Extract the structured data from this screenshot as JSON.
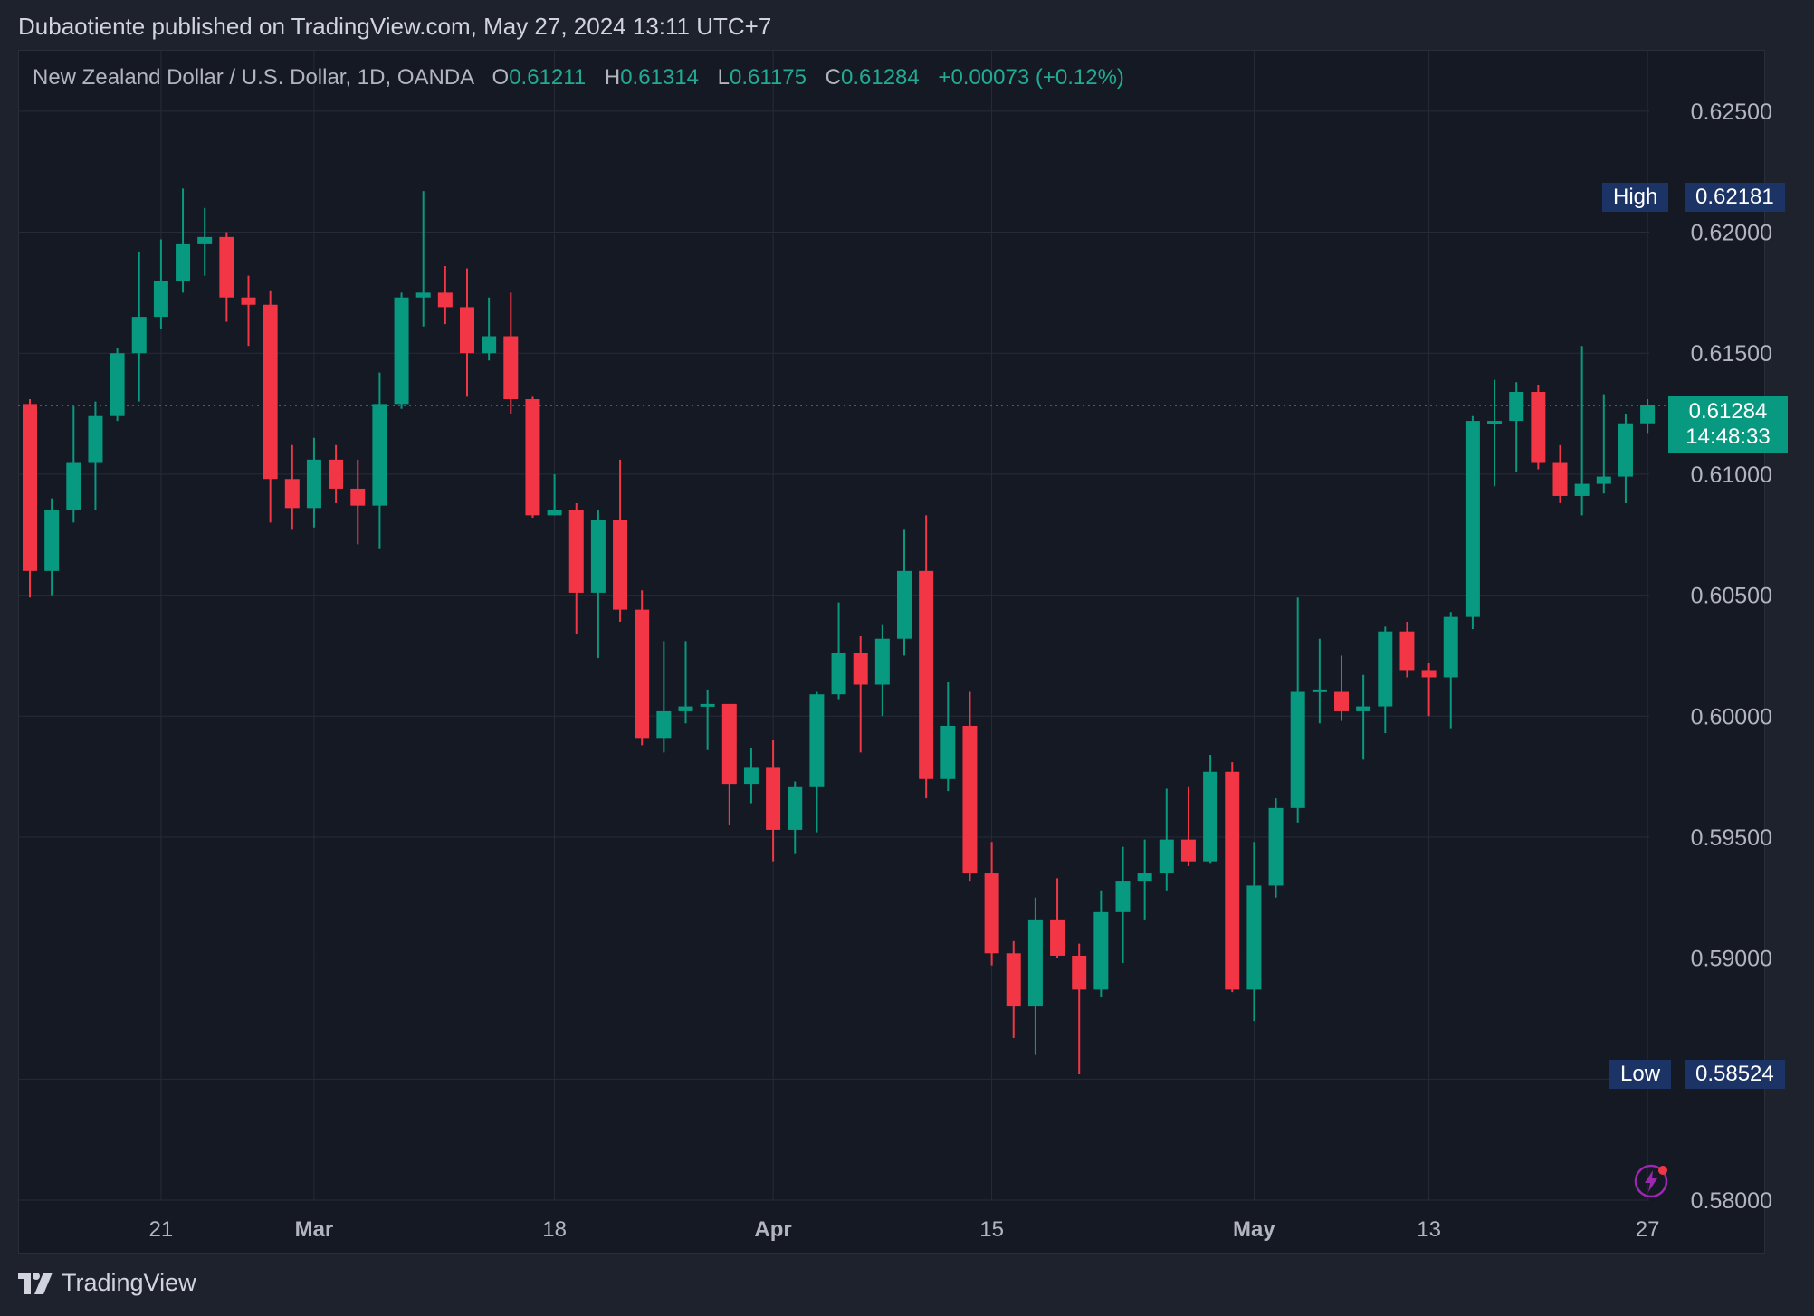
{
  "header": {
    "text": "Dubaotiente published on TradingView.com, May 27, 2024 13:11 UTC+7"
  },
  "legend": {
    "symbol": "New Zealand Dollar / U.S. Dollar, 1D, OANDA",
    "o_label": "O",
    "o_value": "0.61211",
    "h_label": "H",
    "h_value": "0.61314",
    "l_label": "L",
    "l_value": "0.61175",
    "c_label": "C",
    "c_value": "0.61284",
    "change": "+0.00073 (+0.12%)"
  },
  "high_tag": {
    "label": "High",
    "value": "0.62181"
  },
  "low_tag": {
    "label": "Low",
    "value": "0.58524"
  },
  "last_price_tag": {
    "value": "0.61284",
    "countdown": "14:48:33"
  },
  "footer": {
    "brand": "TradingView"
  },
  "colors": {
    "up": "#089981",
    "down": "#f23645",
    "background": "#151924",
    "grid": "#262b38",
    "axis_text": "#b2b5be",
    "tag_bg": "#1c3366"
  },
  "chart_data": {
    "type": "candlestick",
    "title": "New Zealand Dollar / U.S. Dollar, 1D, OANDA",
    "ylim": [
      0.58,
      0.6275
    ],
    "y_ticks": [
      "0.62500",
      "0.62000",
      "0.61500",
      "0.61000",
      "0.60500",
      "0.60000",
      "0.59500",
      "0.59000",
      "0.58500",
      "0.58000"
    ],
    "y_tick_values": [
      0.625,
      0.62,
      0.615,
      0.61,
      0.605,
      0.6,
      0.595,
      0.59,
      0.585,
      0.58
    ],
    "x_ticks": [
      {
        "label": "21",
        "index": 6
      },
      {
        "label": "Mar",
        "index": 13
      },
      {
        "label": "18",
        "index": 24
      },
      {
        "label": "Apr",
        "index": 34
      },
      {
        "label": "15",
        "index": 44
      },
      {
        "label": "May",
        "index": 56
      },
      {
        "label": "13",
        "index": 64
      },
      {
        "label": "27",
        "index": 74
      }
    ],
    "grid": true,
    "last_price": 0.61284,
    "candles": [
      {
        "o": 0.6129,
        "h": 0.6131,
        "l": 0.6049,
        "c": 0.606
      },
      {
        "o": 0.606,
        "h": 0.609,
        "l": 0.605,
        "c": 0.6085
      },
      {
        "o": 0.6085,
        "h": 0.6128,
        "l": 0.608,
        "c": 0.6105
      },
      {
        "o": 0.6105,
        "h": 0.613,
        "l": 0.6085,
        "c": 0.6124
      },
      {
        "o": 0.6124,
        "h": 0.6152,
        "l": 0.6122,
        "c": 0.615
      },
      {
        "o": 0.615,
        "h": 0.6192,
        "l": 0.613,
        "c": 0.6165
      },
      {
        "o": 0.6165,
        "h": 0.6197,
        "l": 0.616,
        "c": 0.618
      },
      {
        "o": 0.618,
        "h": 0.6218,
        "l": 0.6175,
        "c": 0.6195
      },
      {
        "o": 0.6195,
        "h": 0.621,
        "l": 0.6182,
        "c": 0.6198
      },
      {
        "o": 0.6198,
        "h": 0.62,
        "l": 0.6163,
        "c": 0.6173
      },
      {
        "o": 0.6173,
        "h": 0.6182,
        "l": 0.6153,
        "c": 0.617
      },
      {
        "o": 0.617,
        "h": 0.6176,
        "l": 0.608,
        "c": 0.6098
      },
      {
        "o": 0.6098,
        "h": 0.6112,
        "l": 0.6077,
        "c": 0.6086
      },
      {
        "o": 0.6086,
        "h": 0.6115,
        "l": 0.6078,
        "c": 0.6106
      },
      {
        "o": 0.6106,
        "h": 0.6112,
        "l": 0.6088,
        "c": 0.6094
      },
      {
        "o": 0.6094,
        "h": 0.6106,
        "l": 0.6071,
        "c": 0.6087
      },
      {
        "o": 0.6087,
        "h": 0.6142,
        "l": 0.6069,
        "c": 0.6129
      },
      {
        "o": 0.6129,
        "h": 0.6175,
        "l": 0.6127,
        "c": 0.6173
      },
      {
        "o": 0.6173,
        "h": 0.6217,
        "l": 0.6161,
        "c": 0.6175
      },
      {
        "o": 0.6175,
        "h": 0.6186,
        "l": 0.6162,
        "c": 0.6169
      },
      {
        "o": 0.6169,
        "h": 0.6185,
        "l": 0.6132,
        "c": 0.615
      },
      {
        "o": 0.615,
        "h": 0.6173,
        "l": 0.6147,
        "c": 0.6157
      },
      {
        "o": 0.6157,
        "h": 0.6175,
        "l": 0.6125,
        "c": 0.6131
      },
      {
        "o": 0.6131,
        "h": 0.6132,
        "l": 0.6082,
        "c": 0.6083
      },
      {
        "o": 0.6083,
        "h": 0.61,
        "l": 0.6083,
        "c": 0.6085
      },
      {
        "o": 0.6085,
        "h": 0.6088,
        "l": 0.6034,
        "c": 0.6051
      },
      {
        "o": 0.6051,
        "h": 0.6085,
        "l": 0.6024,
        "c": 0.6081
      },
      {
        "o": 0.6081,
        "h": 0.6106,
        "l": 0.6039,
        "c": 0.6044
      },
      {
        "o": 0.6044,
        "h": 0.6052,
        "l": 0.5988,
        "c": 0.5991
      },
      {
        "o": 0.5991,
        "h": 0.6031,
        "l": 0.5985,
        "c": 0.6002
      },
      {
        "o": 0.6002,
        "h": 0.6031,
        "l": 0.5997,
        "c": 0.6004
      },
      {
        "o": 0.6004,
        "h": 0.6011,
        "l": 0.5986,
        "c": 0.6005
      },
      {
        "o": 0.6005,
        "h": 0.6005,
        "l": 0.5955,
        "c": 0.5972
      },
      {
        "o": 0.5972,
        "h": 0.5987,
        "l": 0.5964,
        "c": 0.5979
      },
      {
        "o": 0.5979,
        "h": 0.599,
        "l": 0.594,
        "c": 0.5953
      },
      {
        "o": 0.5953,
        "h": 0.5973,
        "l": 0.5943,
        "c": 0.5971
      },
      {
        "o": 0.5971,
        "h": 0.601,
        "l": 0.5952,
        "c": 0.6009
      },
      {
        "o": 0.6009,
        "h": 0.6047,
        "l": 0.6007,
        "c": 0.6026
      },
      {
        "o": 0.6026,
        "h": 0.6033,
        "l": 0.5985,
        "c": 0.6013
      },
      {
        "o": 0.6013,
        "h": 0.6038,
        "l": 0.6,
        "c": 0.6032
      },
      {
        "o": 0.6032,
        "h": 0.6077,
        "l": 0.6025,
        "c": 0.606
      },
      {
        "o": 0.606,
        "h": 0.6083,
        "l": 0.5966,
        "c": 0.5974
      },
      {
        "o": 0.5974,
        "h": 0.6014,
        "l": 0.5969,
        "c": 0.5996
      },
      {
        "o": 0.5996,
        "h": 0.601,
        "l": 0.5932,
        "c": 0.5935
      },
      {
        "o": 0.5935,
        "h": 0.5948,
        "l": 0.5897,
        "c": 0.5902
      },
      {
        "o": 0.5902,
        "h": 0.5907,
        "l": 0.5867,
        "c": 0.588
      },
      {
        "o": 0.588,
        "h": 0.5925,
        "l": 0.586,
        "c": 0.5916
      },
      {
        "o": 0.5916,
        "h": 0.5933,
        "l": 0.59,
        "c": 0.5901
      },
      {
        "o": 0.5901,
        "h": 0.5906,
        "l": 0.5852,
        "c": 0.5887
      },
      {
        "o": 0.5887,
        "h": 0.5928,
        "l": 0.5884,
        "c": 0.5919
      },
      {
        "o": 0.5919,
        "h": 0.5946,
        "l": 0.5898,
        "c": 0.5932
      },
      {
        "o": 0.5932,
        "h": 0.5949,
        "l": 0.5916,
        "c": 0.5935
      },
      {
        "o": 0.5935,
        "h": 0.597,
        "l": 0.5928,
        "c": 0.5949
      },
      {
        "o": 0.5949,
        "h": 0.5971,
        "l": 0.5938,
        "c": 0.594
      },
      {
        "o": 0.594,
        "h": 0.5984,
        "l": 0.5939,
        "c": 0.5977
      },
      {
        "o": 0.5977,
        "h": 0.5981,
        "l": 0.5886,
        "c": 0.5887
      },
      {
        "o": 0.5887,
        "h": 0.5948,
        "l": 0.5874,
        "c": 0.593
      },
      {
        "o": 0.593,
        "h": 0.5966,
        "l": 0.5925,
        "c": 0.5962
      },
      {
        "o": 0.5962,
        "h": 0.6049,
        "l": 0.5956,
        "c": 0.601
      },
      {
        "o": 0.601,
        "h": 0.6032,
        "l": 0.5997,
        "c": 0.6011
      },
      {
        "o": 0.601,
        "h": 0.6025,
        "l": 0.5998,
        "c": 0.6002
      },
      {
        "o": 0.6002,
        "h": 0.6017,
        "l": 0.5982,
        "c": 0.6004
      },
      {
        "o": 0.6004,
        "h": 0.6037,
        "l": 0.5993,
        "c": 0.6035
      },
      {
        "o": 0.6035,
        "h": 0.6039,
        "l": 0.6016,
        "c": 0.6019
      },
      {
        "o": 0.6019,
        "h": 0.6022,
        "l": 0.6,
        "c": 0.6016
      },
      {
        "o": 0.6016,
        "h": 0.6043,
        "l": 0.5995,
        "c": 0.6041
      },
      {
        "o": 0.6041,
        "h": 0.6124,
        "l": 0.6036,
        "c": 0.6122
      },
      {
        "o": 0.6122,
        "h": 0.6139,
        "l": 0.6095,
        "c": 0.6122
      },
      {
        "o": 0.6122,
        "h": 0.6138,
        "l": 0.6101,
        "c": 0.6134
      },
      {
        "o": 0.6134,
        "h": 0.6137,
        "l": 0.6102,
        "c": 0.6105
      },
      {
        "o": 0.6105,
        "h": 0.6112,
        "l": 0.6088,
        "c": 0.6091
      },
      {
        "o": 0.6091,
        "h": 0.6153,
        "l": 0.6083,
        "c": 0.6096
      },
      {
        "o": 0.6096,
        "h": 0.6133,
        "l": 0.6092,
        "c": 0.6099
      },
      {
        "o": 0.6099,
        "h": 0.6125,
        "l": 0.6088,
        "c": 0.6121
      },
      {
        "o": 0.6121,
        "h": 0.6131,
        "l": 0.6117,
        "c": 0.61284
      }
    ]
  }
}
